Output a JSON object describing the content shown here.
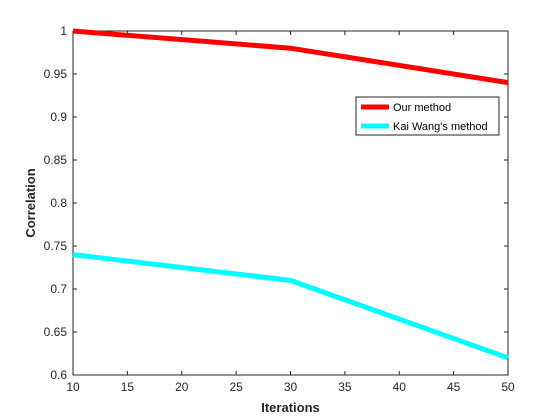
{
  "chart_data": {
    "type": "line",
    "title": "",
    "xlabel": "Iterations",
    "ylabel": "Correlation",
    "xlim": [
      10,
      50
    ],
    "ylim": [
      0.6,
      1.0
    ],
    "xticks": [
      10,
      15,
      20,
      25,
      30,
      35,
      40,
      45,
      50
    ],
    "yticks": [
      0.6,
      0.65,
      0.7,
      0.75,
      0.8,
      0.85,
      0.9,
      0.95,
      1
    ],
    "x": [
      10,
      30,
      50
    ],
    "series": [
      {
        "name": "Our method",
        "color": "#ff0000",
        "values": [
          1.0,
          0.98,
          0.94
        ]
      },
      {
        "name": "Kai Wang's method",
        "color": "#00ffff",
        "values": [
          0.74,
          0.71,
          0.62
        ]
      }
    ],
    "grid": false,
    "legend_position": "top-right"
  }
}
